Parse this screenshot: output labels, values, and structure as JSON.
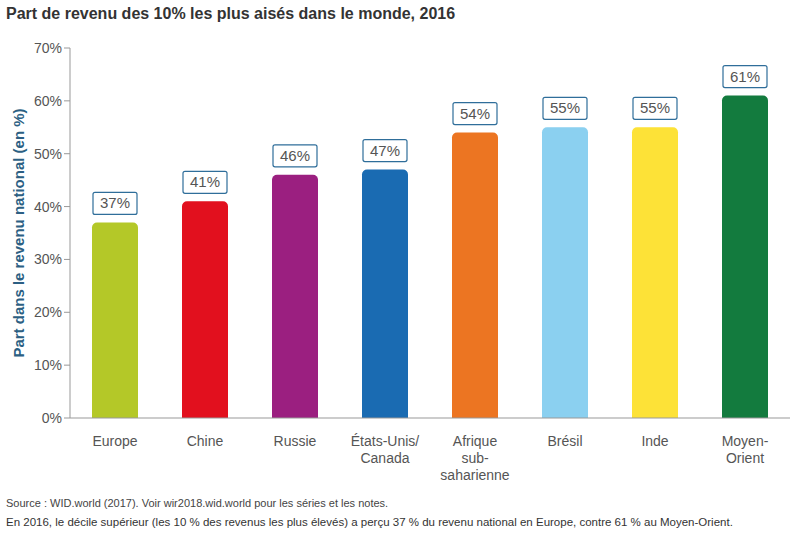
{
  "chart_data": {
    "type": "bar",
    "title": "Part de revenu des 10% les plus aisés dans le monde, 2016",
    "y_label": "Part dans le revenu national (en %)",
    "categories": [
      "Europe",
      "Chine",
      "Russie",
      "États-Unis/Canada",
      "Afrique sub-saharienne",
      "Brésil",
      "Inde",
      "Moyen-Orient"
    ],
    "values": [
      37,
      41,
      46,
      47,
      54,
      55,
      55,
      61
    ],
    "value_labels": [
      "37%",
      "41%",
      "46%",
      "47%",
      "54%",
      "55%",
      "55%",
      "61%"
    ],
    "colors": [
      "#b4c828",
      "#e2101e",
      "#9b1f80",
      "#1a6bb2",
      "#ec7522",
      "#8bd0f0",
      "#fde237",
      "#137b3e"
    ],
    "ylim": [
      0,
      70
    ],
    "yticks": [
      {
        "value": 0,
        "label": "0%"
      },
      {
        "value": 10,
        "label": "10%"
      },
      {
        "value": 20,
        "label": "20%"
      },
      {
        "value": 30,
        "label": "30%"
      },
      {
        "value": 40,
        "label": "40%"
      },
      {
        "value": 50,
        "label": "50%"
      },
      {
        "value": 60,
        "label": "60%"
      },
      {
        "value": 70,
        "label": "70%"
      }
    ],
    "grid": false,
    "data_labels": true,
    "annotations": [
      "Source : WID.world (2017). Voir wir2018.wid.world pour les séries et les notes.",
      "En 2016, le décile supérieur (les 10 % des revenus les plus élevés) a perçu 37 % du revenu national en Europe, contre 61 % au Moyen-Orient."
    ]
  }
}
